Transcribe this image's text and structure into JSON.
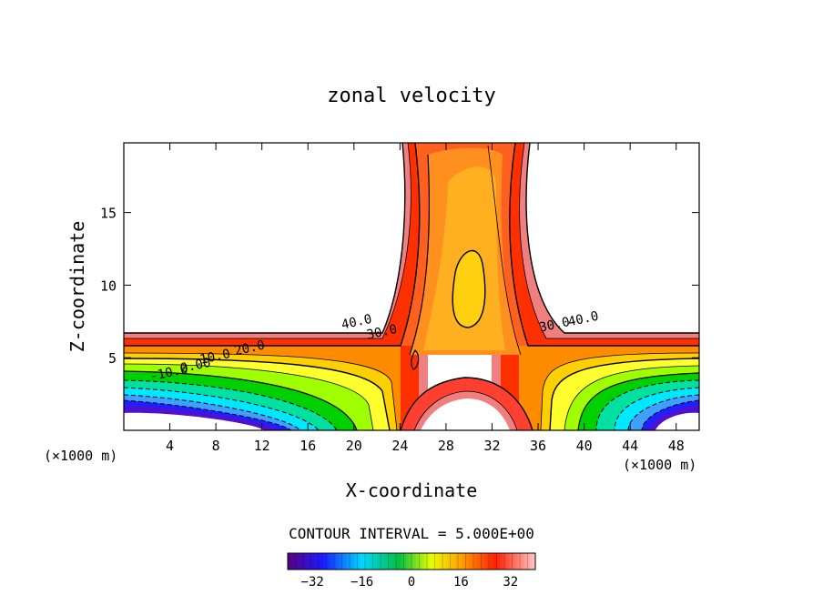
{
  "chart_data": {
    "type": "contour",
    "title": "zonal velocity",
    "xlabel": "X-coordinate",
    "ylabel": "Z-coordinate",
    "x_unit_left": "(×1000 m)",
    "x_unit_right": "(×1000 m)",
    "xlim": [
      0,
      50
    ],
    "ylim": [
      0,
      19.8
    ],
    "x_ticks": [
      4,
      8,
      12,
      16,
      20,
      24,
      28,
      32,
      36,
      40,
      44,
      48
    ],
    "y_ticks": [
      5,
      10,
      15
    ],
    "contour_interval_text": "CONTOUR INTERVAL = 5.000E+00",
    "contour_labels": [
      {
        "text": "40.0",
        "x": 20.3,
        "z": 7.2
      },
      {
        "text": "30.0",
        "x": 22.5,
        "z": 6.5
      },
      {
        "text": "20.0",
        "x": 11.0,
        "z": 5.4
      },
      {
        "text": "10.0",
        "x": 8.0,
        "z": 4.8
      },
      {
        "text": "0.00",
        "x": 6.3,
        "z": 4.2
      },
      {
        "text": "-10.0",
        "x": 4.0,
        "z": 3.7
      },
      {
        "text": "30.0",
        "x": 37.5,
        "z": 7.0
      },
      {
        "text": "40.0",
        "x": 40.0,
        "z": 7.4
      }
    ],
    "colorbar": {
      "ticks": [
        -32,
        -16,
        0,
        16,
        32
      ],
      "tick_labels": [
        "−32",
        "−16",
        "0",
        "16",
        "32"
      ],
      "range": [
        -40,
        40
      ],
      "colors": [
        "#4b0082",
        "#0000ff",
        "#00e5ff",
        "#00c800",
        "#ffff00",
        "#ff8c00",
        "#ff0000",
        "#ffc0cb"
      ]
    },
    "grid": false
  }
}
